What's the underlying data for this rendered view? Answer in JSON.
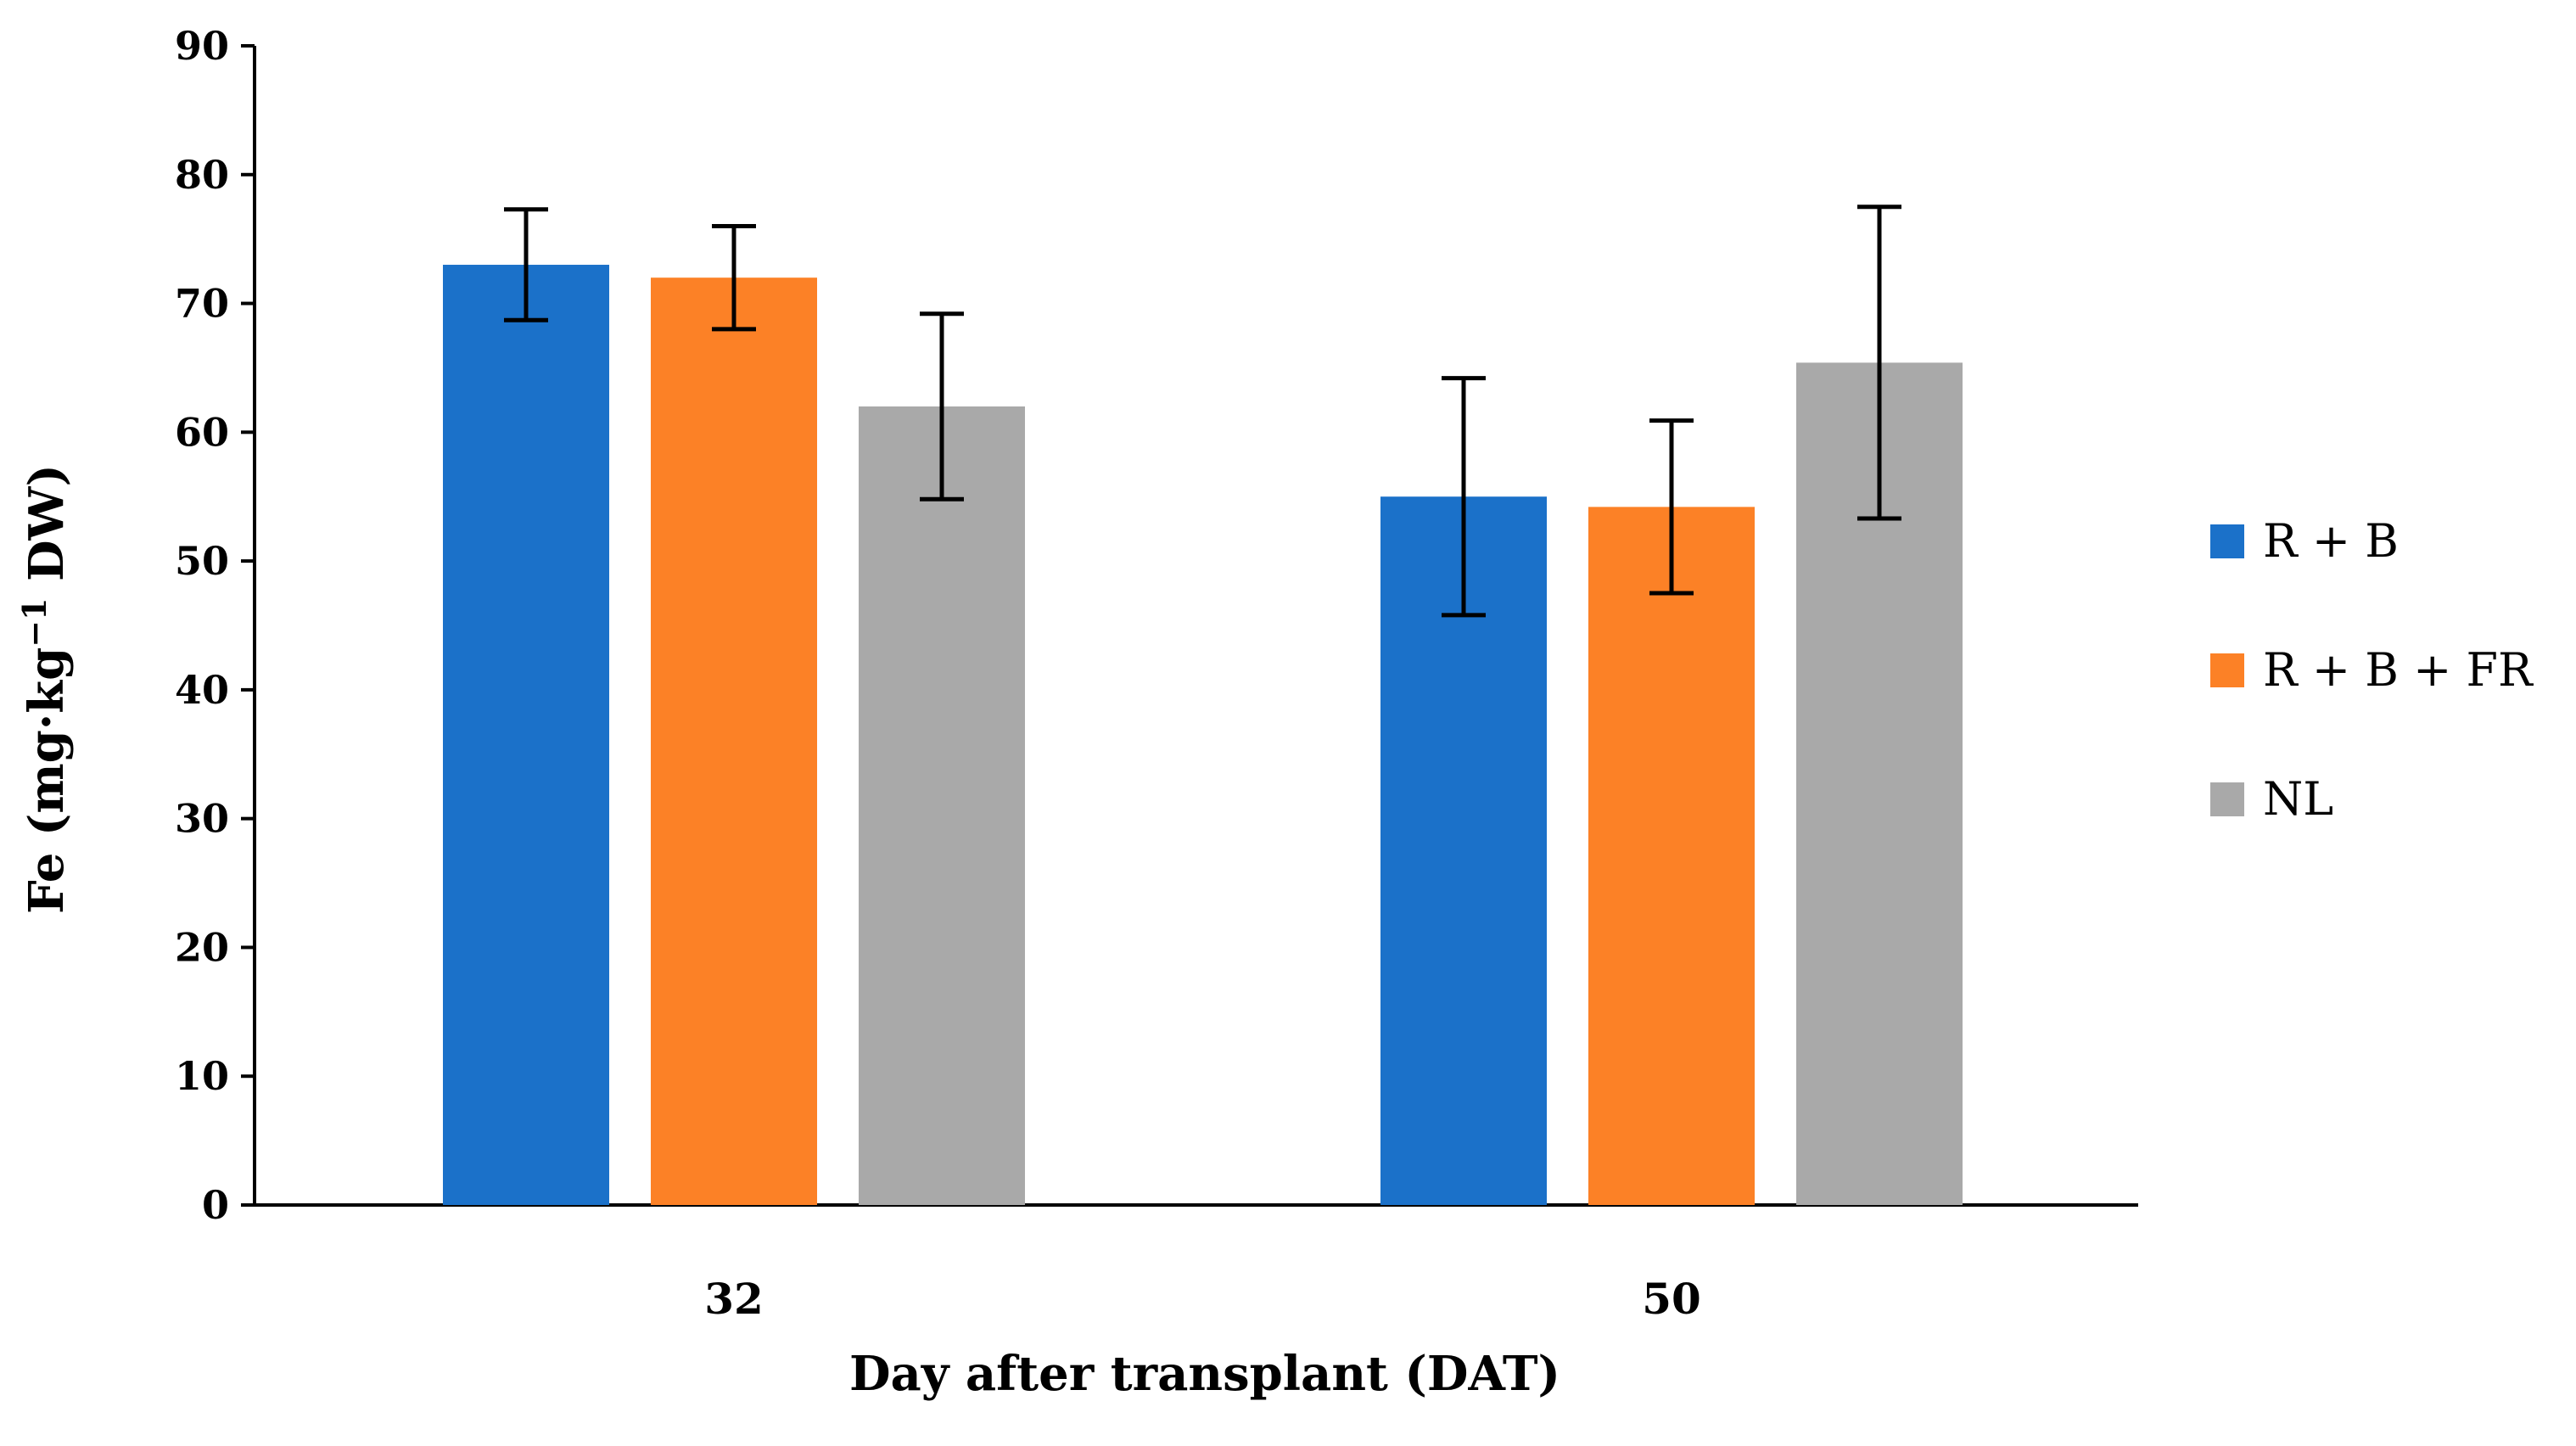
{
  "chart_data": {
    "type": "bar",
    "title": "",
    "xlabel": "Day after transplant (DAT)",
    "ylabel_parts": {
      "prefix": "Fe (mg·kg",
      "superscript": "−1",
      "suffix": " DW)"
    },
    "ylim": [
      0,
      90
    ],
    "yticks": [
      0,
      10,
      20,
      30,
      40,
      50,
      60,
      70,
      80,
      90
    ],
    "categories": [
      "32",
      "50"
    ],
    "legend_position": "right",
    "series": [
      {
        "name": "R + B",
        "color": "#1b71c9",
        "values": [
          73,
          55
        ],
        "errors": [
          4.3,
          9.2
        ]
      },
      {
        "name": "R + B + FR",
        "color": "#fc8126",
        "values": [
          72,
          54.2
        ],
        "errors": [
          4.0,
          6.7
        ]
      },
      {
        "name": "NL",
        "color": "#a9a9a9",
        "values": [
          62,
          65.4
        ],
        "errors": [
          7.2,
          12.1
        ]
      }
    ]
  }
}
